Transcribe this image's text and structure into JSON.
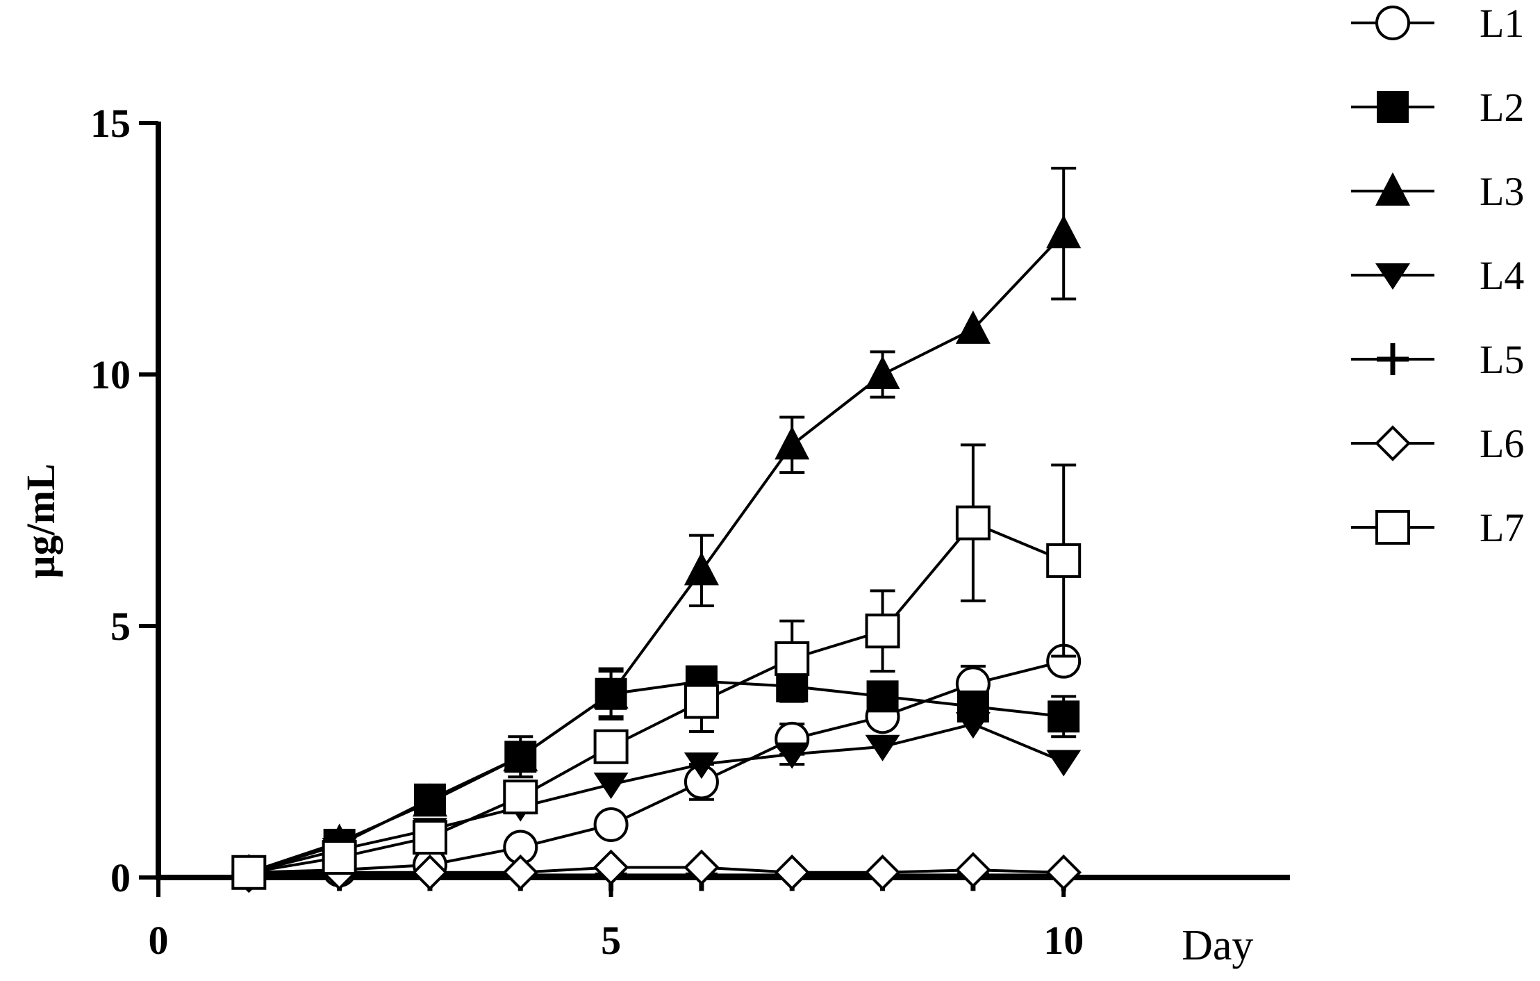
{
  "chart_data": {
    "type": "line",
    "title": "",
    "xlabel": "Day",
    "ylabel": "µg/mL",
    "xlim": [
      0,
      12.5
    ],
    "ylim": [
      0,
      15
    ],
    "x_ticks": [
      "0",
      "5",
      "10"
    ],
    "y_ticks": [
      "0",
      "5",
      "10",
      "15"
    ],
    "x_tick_values": [
      0,
      5,
      10
    ],
    "y_tick_values": [
      0,
      5,
      10,
      15
    ],
    "grid": false,
    "legend_position": "right",
    "x": [
      1,
      2,
      3,
      4,
      5,
      6,
      7,
      8,
      9,
      10
    ],
    "series": [
      {
        "name": "L1",
        "marker": "open-circle",
        "values": [
          0.1,
          0.15,
          0.25,
          0.6,
          1.05,
          1.9,
          2.75,
          3.2,
          3.85,
          4.3
        ],
        "errors": [
          0,
          0,
          0,
          0,
          0,
          0.35,
          0.3,
          0,
          0.35,
          0
        ]
      },
      {
        "name": "L2",
        "marker": "filled-square",
        "values": [
          0.1,
          0.65,
          1.55,
          2.4,
          3.65,
          3.9,
          3.8,
          3.6,
          3.4,
          3.2
        ],
        "errors": [
          0,
          0,
          0,
          0.4,
          0.45,
          0,
          0.3,
          0,
          0,
          0.4
        ]
      },
      {
        "name": "L3",
        "marker": "filled-triangle-up",
        "values": [
          0.1,
          0.7,
          1.5,
          2.4,
          3.65,
          6.1,
          8.6,
          10.0,
          10.9,
          12.8
        ],
        "errors": [
          0,
          0,
          0,
          0,
          0.5,
          0.7,
          0.55,
          0.45,
          0,
          1.3
        ]
      },
      {
        "name": "L4",
        "marker": "filled-triangle-down",
        "values": [
          0.1,
          0.55,
          0.95,
          1.4,
          1.85,
          2.25,
          2.45,
          2.6,
          3.05,
          2.3
        ],
        "errors": [
          0,
          0,
          0,
          0,
          0,
          0,
          0.2,
          0,
          0,
          0
        ]
      },
      {
        "name": "L5",
        "marker": "plus",
        "values": [
          0.05,
          0.05,
          0.05,
          0.05,
          0.05,
          0.05,
          0.05,
          0.05,
          0.05,
          0.05
        ],
        "errors": [
          0,
          0,
          0,
          0,
          0,
          0,
          0,
          0,
          0,
          0
        ]
      },
      {
        "name": "L6",
        "marker": "open-diamond",
        "values": [
          0.05,
          0.1,
          0.1,
          0.1,
          0.2,
          0.2,
          0.1,
          0.1,
          0.15,
          0.1
        ],
        "errors": [
          0,
          0,
          0,
          0,
          0,
          0,
          0,
          0,
          0,
          0
        ]
      },
      {
        "name": "L7",
        "marker": "open-square",
        "values": [
          0.1,
          0.4,
          0.8,
          1.6,
          2.6,
          3.5,
          4.35,
          4.9,
          7.05,
          6.3
        ],
        "errors": [
          0,
          0,
          0,
          0,
          0,
          0.6,
          0.75,
          0.8,
          1.55,
          1.9
        ]
      }
    ]
  },
  "colors": {
    "ink": "#000000",
    "background": "#ffffff"
  }
}
